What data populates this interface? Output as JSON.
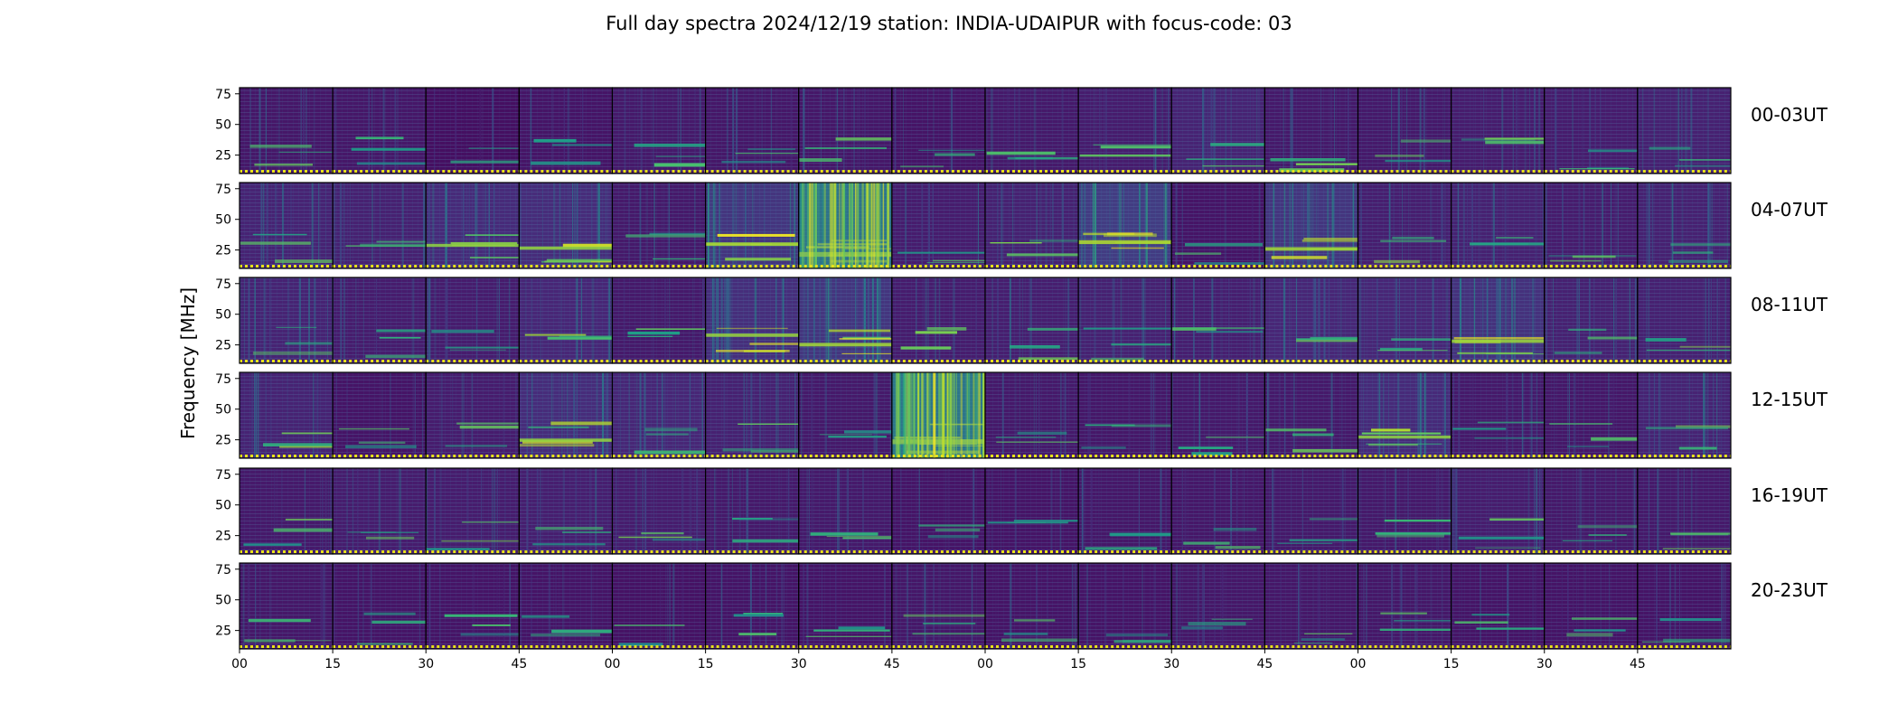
{
  "chart_data": {
    "type": "heatmap",
    "title": "Full day spectra 2024/12/19 station: INDIA-UDAIPUR with focus-code: 03",
    "ylabel": "Frequency [MHz]",
    "xlabel": "",
    "y_ticks": [
      25,
      50,
      75
    ],
    "y_ticks_text": [
      "25",
      "50",
      "75"
    ],
    "ylim": [
      10,
      80
    ],
    "x_tick_labels": [
      "00",
      "15",
      "30",
      "45",
      "00",
      "15",
      "30",
      "45",
      "00",
      "15",
      "30",
      "45",
      "00",
      "15",
      "30",
      "45"
    ],
    "panels_per_row": 16,
    "panel_minutes": 15,
    "colormap": "viridis",
    "rows": [
      {
        "label": "00-03UT",
        "intensity": [
          0.12,
          0.12,
          0.06,
          0.1,
          0.14,
          0.12,
          0.12,
          0.1,
          0.14,
          0.16,
          0.22,
          0.14,
          0.14,
          0.16,
          0.16,
          0.2
        ]
      },
      {
        "label": "04-07UT",
        "intensity": [
          0.22,
          0.2,
          0.28,
          0.3,
          0.14,
          0.38,
          0.65,
          0.16,
          0.2,
          0.45,
          0.1,
          0.38,
          0.18,
          0.2,
          0.16,
          0.2
        ]
      },
      {
        "label": "08-11UT",
        "intensity": [
          0.22,
          0.16,
          0.16,
          0.24,
          0.14,
          0.32,
          0.38,
          0.16,
          0.18,
          0.2,
          0.18,
          0.24,
          0.24,
          0.34,
          0.2,
          0.2
        ]
      },
      {
        "label": "12-15UT",
        "intensity": [
          0.22,
          0.1,
          0.16,
          0.3,
          0.24,
          0.2,
          0.14,
          0.68,
          0.14,
          0.12,
          0.14,
          0.14,
          0.28,
          0.14,
          0.12,
          0.22
        ]
      },
      {
        "label": "16-19UT",
        "intensity": [
          0.14,
          0.16,
          0.16,
          0.18,
          0.16,
          0.14,
          0.14,
          0.1,
          0.1,
          0.12,
          0.12,
          0.14,
          0.14,
          0.16,
          0.14,
          0.14
        ]
      },
      {
        "label": "20-23UT",
        "intensity": [
          0.12,
          0.1,
          0.1,
          0.1,
          0.08,
          0.1,
          0.1,
          0.12,
          0.1,
          0.1,
          0.12,
          0.12,
          0.12,
          0.1,
          0.1,
          0.1
        ]
      }
    ],
    "bottom_marker_color": "#e8e419",
    "colors": {
      "low": "#440154",
      "mid": "#21918c",
      "high": "#fde725"
    }
  }
}
